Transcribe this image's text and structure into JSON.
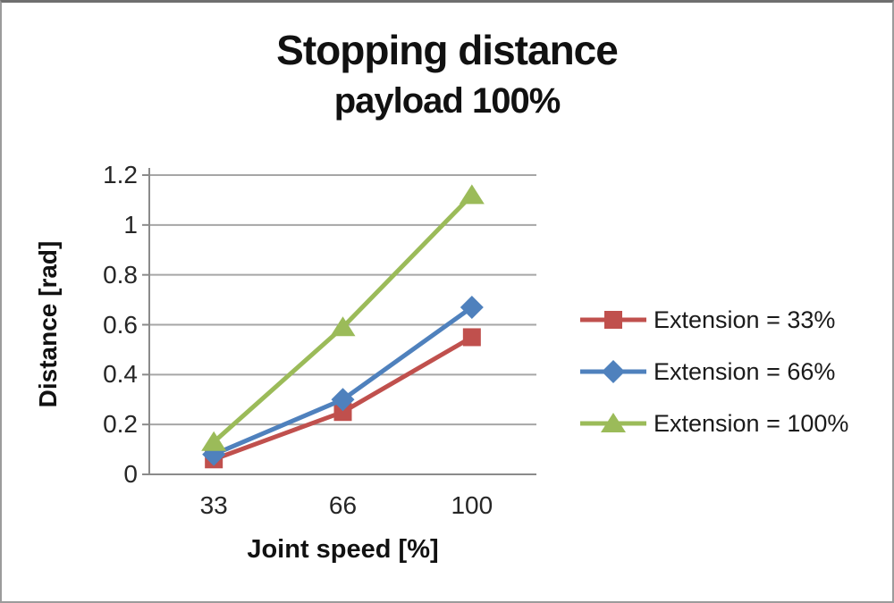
{
  "chart_data": {
    "type": "line",
    "title": "Stopping distance",
    "subtitle": "payload 100%",
    "xlabel": "Joint speed [%]",
    "ylabel": "Distance [rad]",
    "categories": [
      "33",
      "66",
      "100"
    ],
    "series": [
      {
        "name": "Extension = 33%",
        "values": [
          0.06,
          0.25,
          0.55
        ],
        "color": "#C0504D",
        "marker": "square"
      },
      {
        "name": "Extension = 66%",
        "values": [
          0.08,
          0.3,
          0.67
        ],
        "color": "#4F81BD",
        "marker": "diamond"
      },
      {
        "name": "Extension = 100%",
        "values": [
          0.13,
          0.59,
          1.12
        ],
        "color": "#9BBB59",
        "marker": "triangle"
      }
    ],
    "ylim": [
      0,
      1.2
    ],
    "y_ticks": [
      0,
      0.2,
      0.4,
      0.6,
      0.8,
      1,
      1.2
    ],
    "grid": "horizontal",
    "legend_position": "right"
  },
  "colors": {
    "gridline": "#a6a6a6",
    "axis": "#8a8a8a",
    "text": "#1f1f1f"
  }
}
